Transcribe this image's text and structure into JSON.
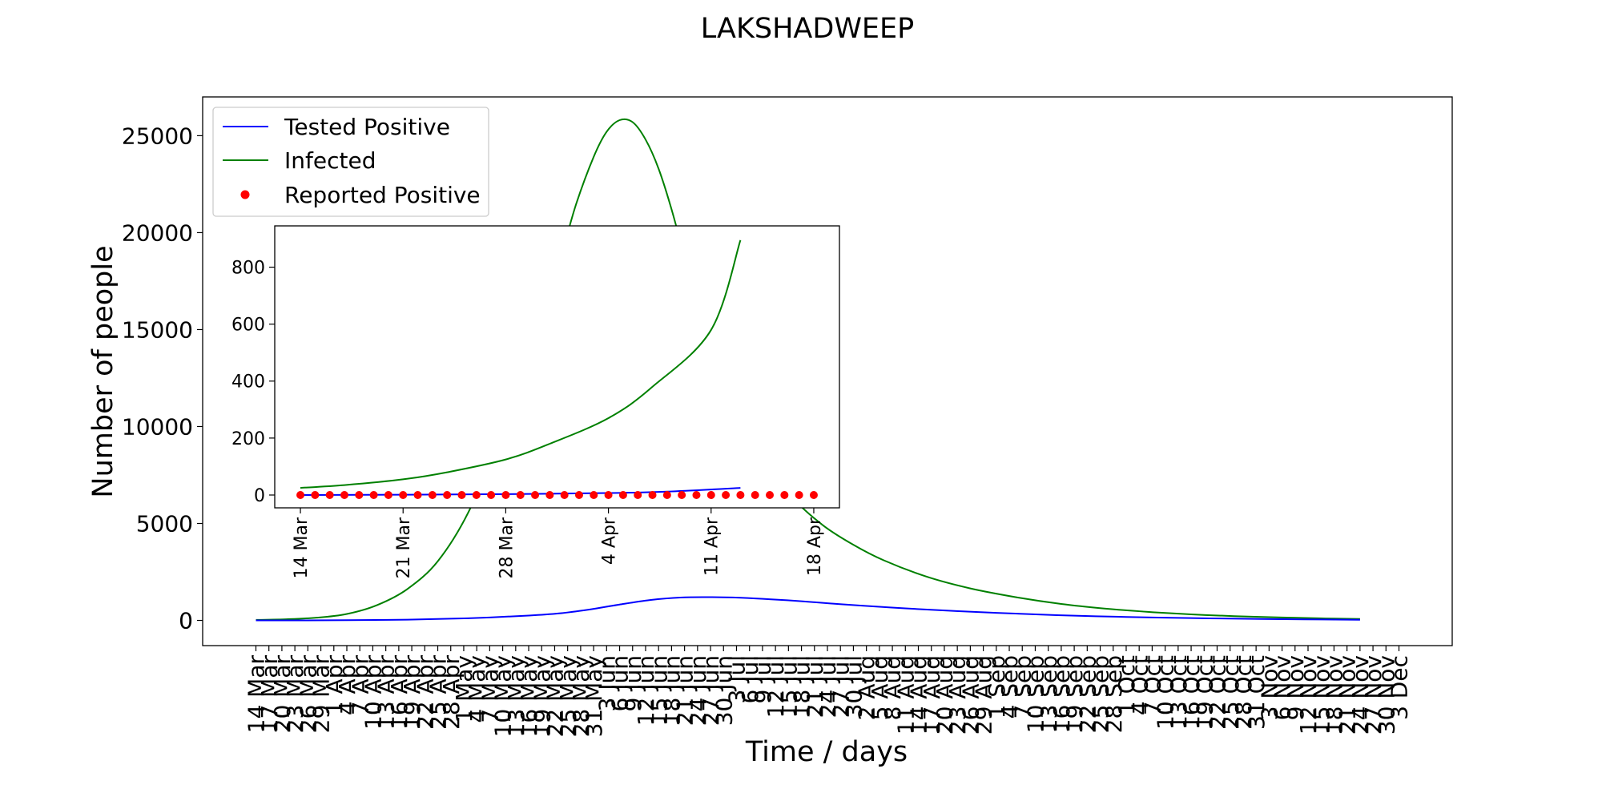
{
  "chart_data": [
    {
      "type": "line",
      "title": "LAKSHADWEEP",
      "xlabel": "Time / days",
      "ylabel": "Number of people",
      "x_start": "2020-03-14",
      "x_end": "2020-12-03",
      "ylim": [
        -1300,
        27000
      ],
      "yticks": [
        0,
        5000,
        10000,
        15000,
        20000,
        25000
      ],
      "x_tick_labels": [
        "14 Mar",
        "17 Mar",
        "20 Mar",
        "23 Mar",
        "26 Mar",
        "29 Mar",
        "1 Apr",
        "4 Apr",
        "7 Apr",
        "10 Apr",
        "13 Apr",
        "16 Apr",
        "19 Apr",
        "22 Apr",
        "25 Apr",
        "28 Apr",
        "1 May",
        "4 May",
        "7 May",
        "10 May",
        "13 May",
        "16 May",
        "19 May",
        "22 May",
        "25 May",
        "28 May",
        "31 May",
        "3 Jun",
        "6 Jun",
        "9 Jun",
        "12 Jun",
        "15 Jun",
        "18 Jun",
        "21 Jun",
        "24 Jun",
        "27 Jun",
        "30 Jun",
        "3 Jul",
        "6 Jul",
        "9 Jul",
        "12 Jul",
        "15 Jul",
        "18 Jul",
        "21 Jul",
        "24 Jul",
        "27 Jul",
        "30 Jul",
        "2 Aug",
        "5 Aug",
        "8 Aug",
        "11 Aug",
        "14 Aug",
        "17 Aug",
        "20 Aug",
        "23 Aug",
        "26 Aug",
        "29 Aug",
        "1 Sep",
        "4 Sep",
        "7 Sep",
        "10 Sep",
        "13 Sep",
        "16 Sep",
        "19 Sep",
        "22 Sep",
        "25 Sep",
        "28 Sep",
        "1 Oct",
        "4 Oct",
        "7 Oct",
        "10 Oct",
        "13 Oct",
        "16 Oct",
        "19 Oct",
        "22 Oct",
        "25 Oct",
        "28 Oct",
        "31 Oct",
        "3 Nov",
        "6 Nov",
        "9 Nov",
        "12 Nov",
        "15 Nov",
        "18 Nov",
        "21 Nov",
        "24 Nov",
        "27 Nov",
        "30 Nov",
        "3 Dec"
      ],
      "legend": {
        "placement": "upper-left",
        "entries": [
          {
            "label": "Tested Positive",
            "color": "#0000ff",
            "marker": "line"
          },
          {
            "label": "Infected",
            "color": "#008000",
            "marker": "line"
          },
          {
            "label": "Reported Positive",
            "color": "#ff0000",
            "marker": "dot"
          }
        ]
      },
      "series": [
        {
          "name": "Infected",
          "color": "#008000",
          "x": [
            "2020-03-14",
            "2020-03-21",
            "2020-03-28",
            "2020-04-04",
            "2020-04-11",
            "2020-04-18",
            "2020-04-25",
            "2020-05-02",
            "2020-05-09",
            "2020-05-16",
            "2020-05-23",
            "2020-05-27",
            "2020-05-31",
            "2020-06-03",
            "2020-06-06",
            "2020-06-09",
            "2020-06-12",
            "2020-06-15",
            "2020-06-18",
            "2020-06-21",
            "2020-06-24",
            "2020-06-27",
            "2020-07-02",
            "2020-07-09",
            "2020-07-16",
            "2020-07-23",
            "2020-07-30",
            "2020-08-06",
            "2020-08-16",
            "2020-08-26",
            "2020-09-06",
            "2020-09-16",
            "2020-09-26",
            "2020-10-06",
            "2020-10-16",
            "2020-10-26",
            "2020-11-06",
            "2020-11-16",
            "2020-11-24"
          ],
          "y": [
            25,
            60,
            140,
            330,
            790,
            1620,
            3050,
            5550,
            9300,
            14000,
            18500,
            21500,
            23900,
            25200,
            25800,
            25700,
            24800,
            23300,
            21200,
            18700,
            16000,
            13600,
            10800,
            8200,
            6300,
            4900,
            3900,
            3100,
            2250,
            1650,
            1180,
            850,
            610,
            440,
            310,
            220,
            150,
            100,
            70
          ]
        },
        {
          "name": "Tested Positive",
          "color": "#0000ff",
          "x": [
            "2020-03-14",
            "2020-04-04",
            "2020-04-18",
            "2020-05-02",
            "2020-05-16",
            "2020-05-23",
            "2020-05-30",
            "2020-06-06",
            "2020-06-13",
            "2020-06-20",
            "2020-06-27",
            "2020-07-04",
            "2020-07-11",
            "2020-07-18",
            "2020-07-25",
            "2020-08-01",
            "2020-08-11",
            "2020-08-21",
            "2020-09-01",
            "2020-09-15",
            "2020-10-01",
            "2020-10-16",
            "2020-11-01",
            "2020-11-24"
          ],
          "y": [
            0,
            10,
            40,
            110,
            250,
            360,
            560,
            820,
            1050,
            1180,
            1200,
            1170,
            1090,
            990,
            870,
            760,
            620,
            500,
            390,
            270,
            180,
            120,
            75,
            30
          ]
        }
      ]
    },
    {
      "type": "line",
      "x_start": "2020-03-14",
      "x_end": "2020-04-18",
      "ylim": [
        -45,
        945
      ],
      "yticks": [
        0,
        200,
        400,
        600,
        800
      ],
      "x_tick_labels": [
        "14 Mar",
        "21 Mar",
        "28 Mar",
        "4 Apr",
        "11 Apr",
        "18 Apr"
      ],
      "series": [
        {
          "name": "Infected",
          "color": "#008000",
          "x": [
            "2020-03-14",
            "2020-03-17",
            "2020-03-21",
            "2020-03-24",
            "2020-03-28",
            "2020-03-31",
            "2020-04-04",
            "2020-04-07",
            "2020-04-11",
            "2020-04-13"
          ],
          "y": [
            25,
            35,
            55,
            80,
            125,
            180,
            270,
            380,
            580,
            895
          ]
        },
        {
          "name": "Tested Positive",
          "color": "#0000ff",
          "x": [
            "2020-03-14",
            "2020-03-21",
            "2020-03-28",
            "2020-04-04",
            "2020-04-08",
            "2020-04-13"
          ],
          "y": [
            0,
            1,
            3,
            7,
            12,
            25
          ]
        },
        {
          "name": "Reported Positive",
          "color": "#ff0000",
          "x": [
            "2020-03-14",
            "2020-03-15",
            "2020-03-16",
            "2020-03-17",
            "2020-03-18",
            "2020-03-19",
            "2020-03-20",
            "2020-03-21",
            "2020-03-22",
            "2020-03-23",
            "2020-03-24",
            "2020-03-25",
            "2020-03-26",
            "2020-03-27",
            "2020-03-28",
            "2020-03-29",
            "2020-03-30",
            "2020-03-31",
            "2020-04-01",
            "2020-04-02",
            "2020-04-03",
            "2020-04-04",
            "2020-04-05",
            "2020-04-06",
            "2020-04-07",
            "2020-04-08",
            "2020-04-09",
            "2020-04-10",
            "2020-04-11",
            "2020-04-12",
            "2020-04-13",
            "2020-04-14",
            "2020-04-15",
            "2020-04-16",
            "2020-04-17",
            "2020-04-18"
          ],
          "y": [
            0,
            0,
            0,
            0,
            0,
            0,
            0,
            0,
            0,
            0,
            0,
            0,
            0,
            0,
            0,
            0,
            0,
            0,
            0,
            0,
            0,
            0,
            0,
            0,
            0,
            0,
            0,
            0,
            0,
            0,
            0,
            0,
            0,
            0,
            0,
            0
          ]
        }
      ]
    }
  ]
}
